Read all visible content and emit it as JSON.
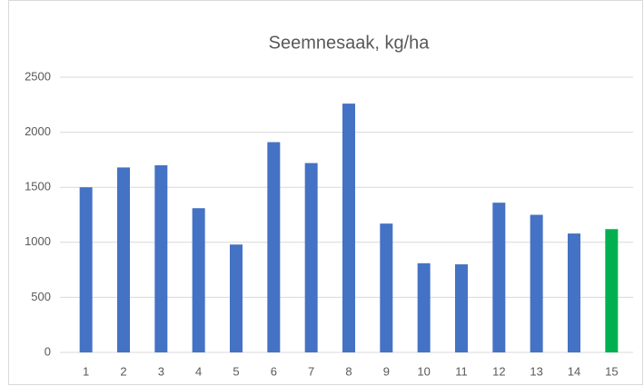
{
  "chart_data": {
    "type": "bar",
    "title": "Seemnesaak, kg/ha",
    "categories": [
      "1",
      "2",
      "3",
      "4",
      "5",
      "6",
      "7",
      "8",
      "9",
      "10",
      "11",
      "12",
      "13",
      "14",
      "15"
    ],
    "values": [
      1500,
      1680,
      1700,
      1310,
      980,
      1910,
      1720,
      2260,
      1170,
      810,
      800,
      1360,
      1250,
      1080,
      1120
    ],
    "colors": [
      "#4472c4",
      "#4472c4",
      "#4472c4",
      "#4472c4",
      "#4472c4",
      "#4472c4",
      "#4472c4",
      "#4472c4",
      "#4472c4",
      "#4472c4",
      "#4472c4",
      "#4472c4",
      "#4472c4",
      "#4472c4",
      "#00b050"
    ],
    "ylim": [
      0,
      2500
    ],
    "yticks": [
      0,
      500,
      1000,
      1500,
      2000,
      2500
    ],
    "grid": true
  }
}
